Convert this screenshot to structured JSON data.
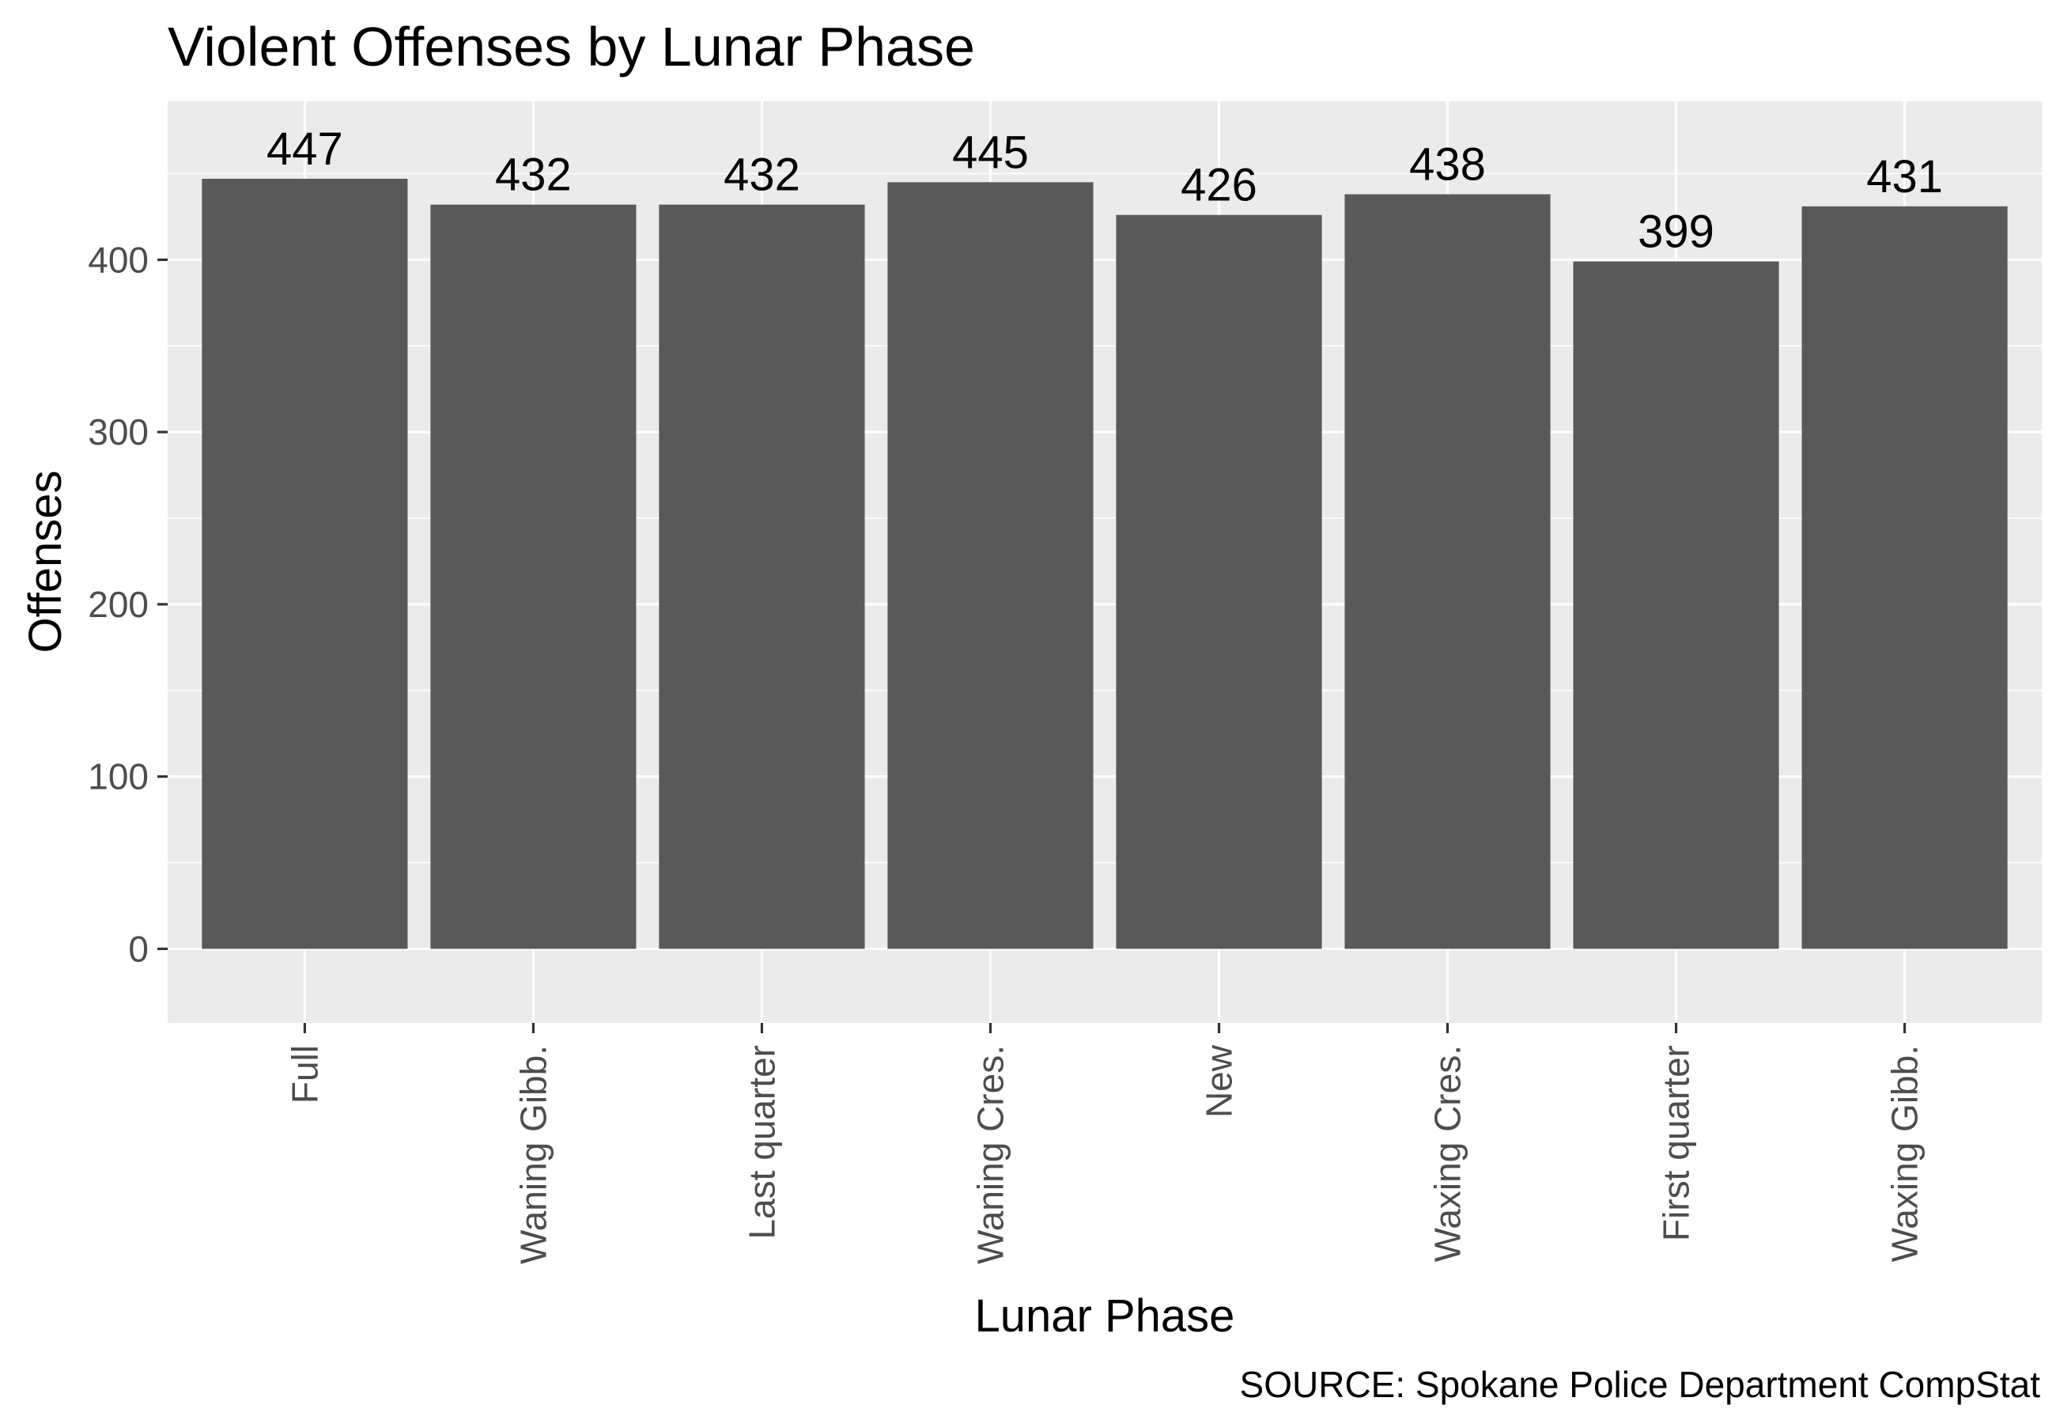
{
  "chart_data": {
    "type": "bar",
    "title": "Violent Offenses by Lunar Phase",
    "xlabel": "Lunar Phase",
    "ylabel": "Offenses",
    "caption": "SOURCE: Spokane Police Department CompStat",
    "categories": [
      "Full",
      "Waning Gibb.",
      "Last quarter",
      "Waning Cres.",
      "New",
      "Waxing Cres.",
      "First quarter",
      "Waxing Gibb."
    ],
    "values": [
      447,
      432,
      432,
      445,
      426,
      438,
      399,
      431
    ],
    "data_labels": [
      "447",
      "432",
      "432",
      "445",
      "426",
      "438",
      "399",
      "431"
    ],
    "yticks": [
      0,
      100,
      200,
      300,
      400
    ],
    "ytick_labels": [
      "0",
      "100",
      "200",
      "300",
      "400"
    ],
    "ylim": [
      -43,
      492
    ],
    "grid": true,
    "legend": "none",
    "colors": {
      "bar": "#595959",
      "panel": "#ebebeb",
      "grid": "#ffffff",
      "tick_text": "#4d4d4d",
      "tick_mark": "#333333"
    }
  }
}
